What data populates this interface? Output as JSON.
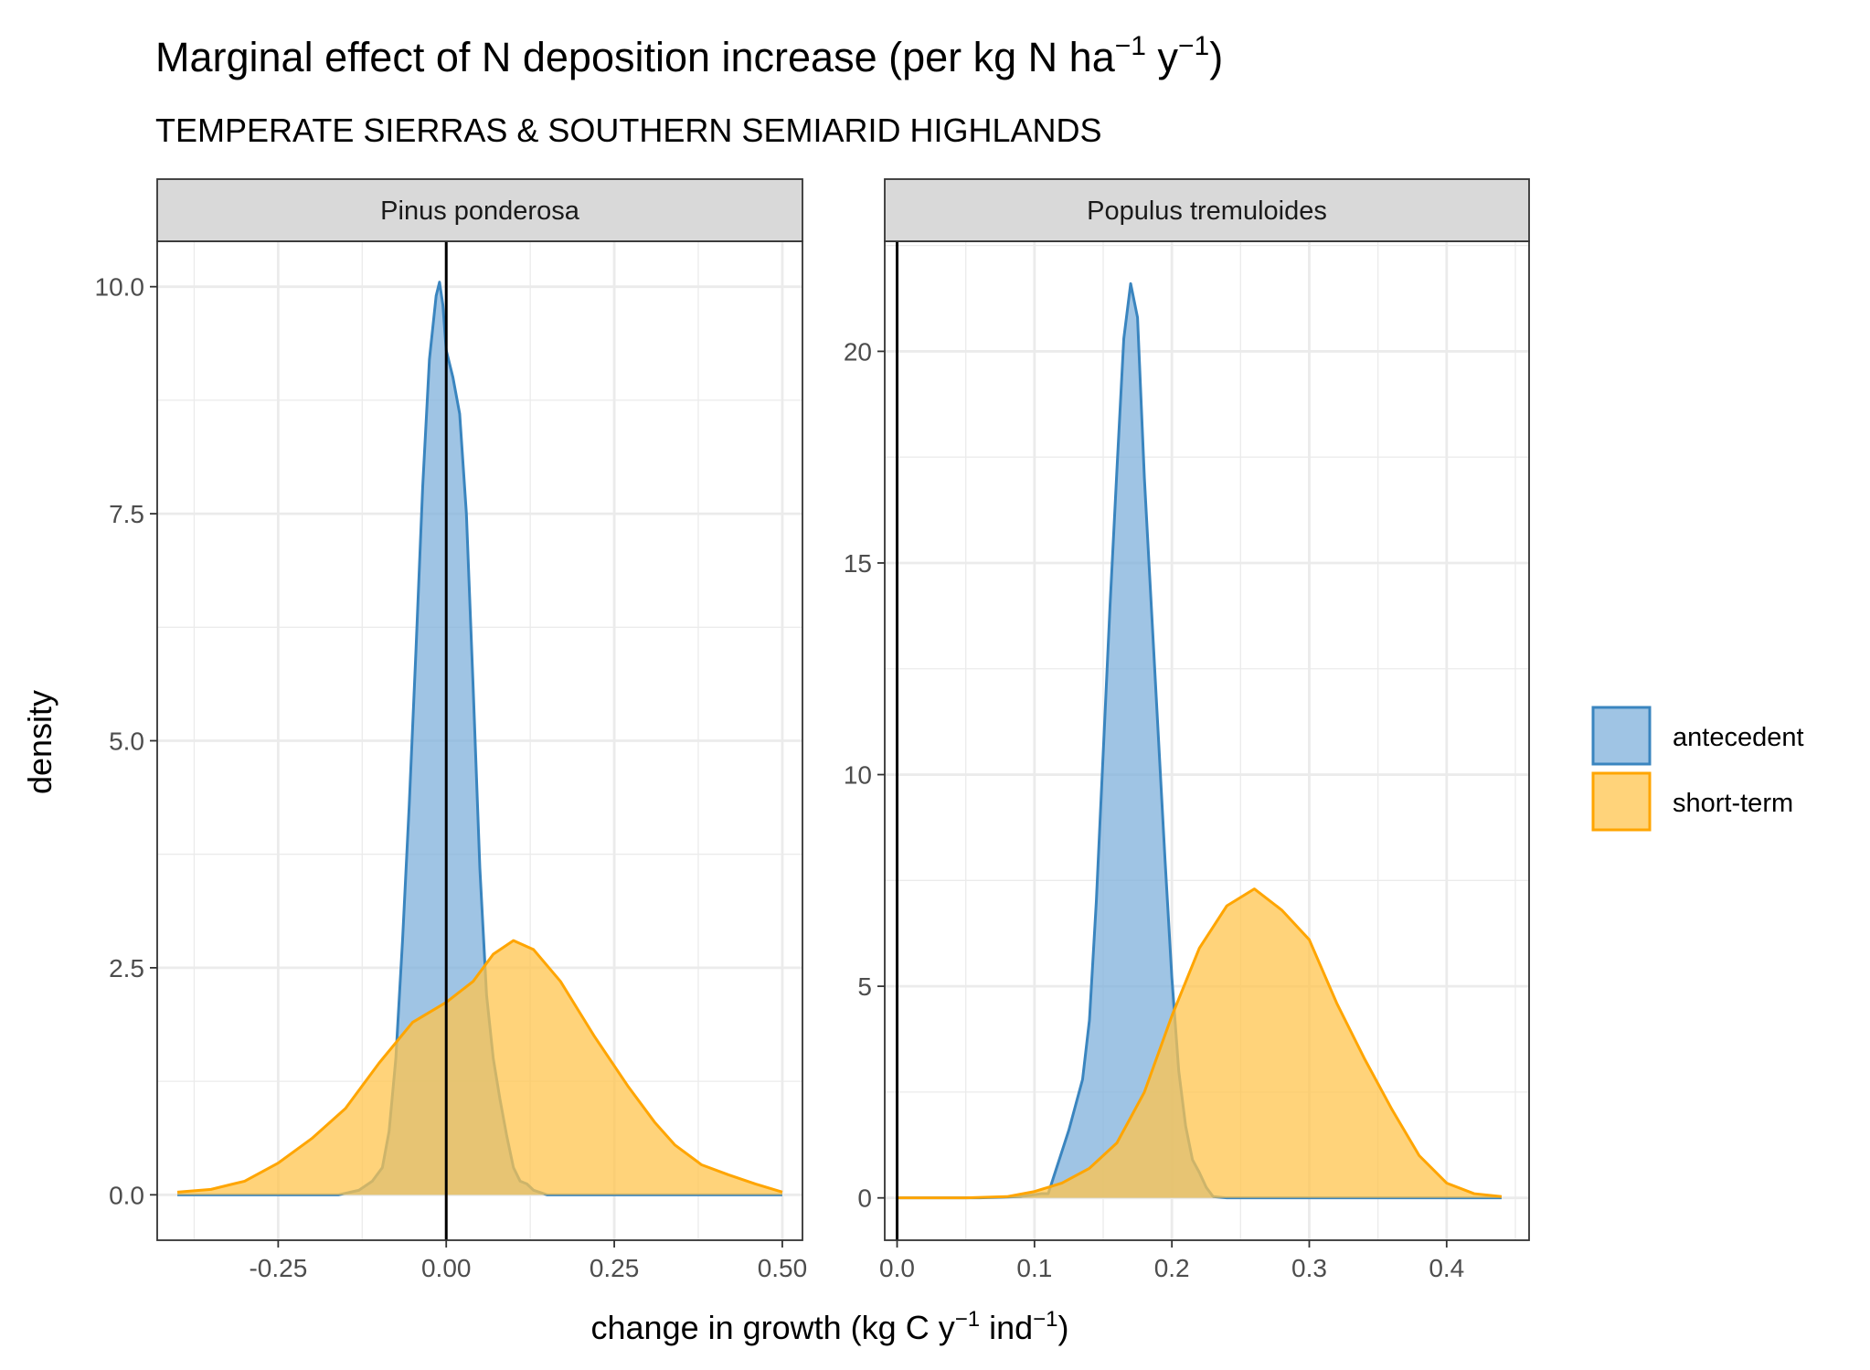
{
  "title_parts": {
    "main": "Marginal effect of N deposition increase (per kg N ha",
    "exp1": "−1",
    "mid": " y",
    "exp2": "−1",
    "end": ")"
  },
  "subtitle": "TEMPERATE SIERRAS & SOUTHERN SEMIARID HIGHLANDS",
  "xlabel_parts": {
    "main": "change in growth (kg C y",
    "exp1": "−1",
    "mid": " ind",
    "exp2": "−1",
    "end": ")"
  },
  "ylabel": "density",
  "colors": {
    "antecedent_line": "#3a85bf",
    "antecedent_fill": "#7fb0db",
    "shortterm_line": "#ffa500",
    "shortterm_fill": "#ffc44d",
    "grid": "#ebebeb",
    "strip_bg": "#d9d9d9",
    "panel_border": "#333333"
  },
  "chart_data": [
    {
      "type": "area",
      "panel": "Pinus ponderosa",
      "xlim": [
        -0.43,
        0.53
      ],
      "ylim": [
        -0.5,
        10.5
      ],
      "xticks": [
        -0.25,
        0.0,
        0.25,
        0.5
      ],
      "xtick_labels": [
        "-0.25",
        "0.00",
        "0.25",
        "0.50"
      ],
      "yticks": [
        0.0,
        2.5,
        5.0,
        7.5,
        10.0
      ],
      "ytick_labels": [
        "0.0",
        "2.5",
        "5.0",
        "7.5",
        "10.0"
      ],
      "vline": 0.0,
      "series": [
        {
          "name": "antecedent",
          "points": [
            [
              -0.4,
              0
            ],
            [
              -0.16,
              0
            ],
            [
              -0.13,
              0.05
            ],
            [
              -0.11,
              0.15
            ],
            [
              -0.095,
              0.3
            ],
            [
              -0.085,
              0.7
            ],
            [
              -0.075,
              1.5
            ],
            [
              -0.065,
              2.8
            ],
            [
              -0.055,
              4.3
            ],
            [
              -0.045,
              6.0
            ],
            [
              -0.035,
              7.8
            ],
            [
              -0.025,
              9.2
            ],
            [
              -0.015,
              9.9
            ],
            [
              -0.01,
              10.05
            ],
            [
              -0.005,
              9.8
            ],
            [
              0.0,
              9.3
            ],
            [
              0.01,
              9.0
            ],
            [
              0.02,
              8.6
            ],
            [
              0.03,
              7.5
            ],
            [
              0.04,
              5.6
            ],
            [
              0.05,
              3.6
            ],
            [
              0.06,
              2.2
            ],
            [
              0.07,
              1.5
            ],
            [
              0.08,
              1.05
            ],
            [
              0.09,
              0.65
            ],
            [
              0.1,
              0.3
            ],
            [
              0.11,
              0.15
            ],
            [
              0.12,
              0.12
            ],
            [
              0.13,
              0.05
            ],
            [
              0.15,
              0
            ],
            [
              0.5,
              0
            ]
          ]
        },
        {
          "name": "short-term",
          "points": [
            [
              -0.4,
              0.03
            ],
            [
              -0.35,
              0.06
            ],
            [
              -0.3,
              0.15
            ],
            [
              -0.25,
              0.35
            ],
            [
              -0.2,
              0.62
            ],
            [
              -0.15,
              0.95
            ],
            [
              -0.1,
              1.45
            ],
            [
              -0.05,
              1.9
            ],
            [
              0.0,
              2.12
            ],
            [
              0.04,
              2.35
            ],
            [
              0.07,
              2.65
            ],
            [
              0.1,
              2.8
            ],
            [
              0.13,
              2.7
            ],
            [
              0.17,
              2.35
            ],
            [
              0.22,
              1.75
            ],
            [
              0.27,
              1.2
            ],
            [
              0.31,
              0.8
            ],
            [
              0.34,
              0.55
            ],
            [
              0.38,
              0.33
            ],
            [
              0.42,
              0.22
            ],
            [
              0.46,
              0.12
            ],
            [
              0.5,
              0.03
            ]
          ]
        }
      ]
    },
    {
      "type": "area",
      "panel": "Populus tremuloides",
      "xlim": [
        -0.009,
        0.46
      ],
      "ylim": [
        -1.0,
        22.6
      ],
      "xticks": [
        0.0,
        0.1,
        0.2,
        0.3,
        0.4
      ],
      "xtick_labels": [
        "0.0",
        "0.1",
        "0.2",
        "0.3",
        "0.4"
      ],
      "yticks": [
        0,
        5,
        10,
        15,
        20
      ],
      "ytick_labels": [
        "0",
        "5",
        "10",
        "15",
        "20"
      ],
      "vline": 0.0,
      "series": [
        {
          "name": "antecedent",
          "points": [
            [
              0.0,
              0
            ],
            [
              0.06,
              0
            ],
            [
              0.09,
              0.03
            ],
            [
              0.105,
              0.1
            ],
            [
              0.11,
              0.1
            ],
            [
              0.115,
              0.6
            ],
            [
              0.125,
              1.6
            ],
            [
              0.135,
              2.8
            ],
            [
              0.14,
              4.2
            ],
            [
              0.145,
              7.0
            ],
            [
              0.15,
              10.5
            ],
            [
              0.155,
              14.0
            ],
            [
              0.16,
              17.2
            ],
            [
              0.165,
              20.3
            ],
            [
              0.17,
              21.6
            ],
            [
              0.175,
              20.8
            ],
            [
              0.18,
              17.0
            ],
            [
              0.185,
              14.0
            ],
            [
              0.19,
              11.0
            ],
            [
              0.195,
              8.0
            ],
            [
              0.2,
              5.2
            ],
            [
              0.205,
              3.0
            ],
            [
              0.21,
              1.7
            ],
            [
              0.215,
              0.9
            ],
            [
              0.22,
              0.6
            ],
            [
              0.225,
              0.25
            ],
            [
              0.23,
              0.03
            ],
            [
              0.24,
              0
            ],
            [
              0.44,
              0
            ]
          ]
        },
        {
          "name": "short-term",
          "points": [
            [
              0.0,
              0
            ],
            [
              0.05,
              0
            ],
            [
              0.08,
              0.03
            ],
            [
              0.1,
              0.15
            ],
            [
              0.12,
              0.35
            ],
            [
              0.14,
              0.7
            ],
            [
              0.16,
              1.3
            ],
            [
              0.18,
              2.5
            ],
            [
              0.2,
              4.3
            ],
            [
              0.22,
              5.9
            ],
            [
              0.24,
              6.9
            ],
            [
              0.26,
              7.3
            ],
            [
              0.28,
              6.8
            ],
            [
              0.3,
              6.1
            ],
            [
              0.32,
              4.6
            ],
            [
              0.34,
              3.3
            ],
            [
              0.36,
              2.1
            ],
            [
              0.38,
              1.0
            ],
            [
              0.4,
              0.35
            ],
            [
              0.42,
              0.1
            ],
            [
              0.44,
              0.03
            ]
          ]
        }
      ]
    }
  ],
  "legend": {
    "position": "right",
    "items": [
      {
        "label": "antecedent"
      },
      {
        "label": "short-term"
      }
    ]
  }
}
